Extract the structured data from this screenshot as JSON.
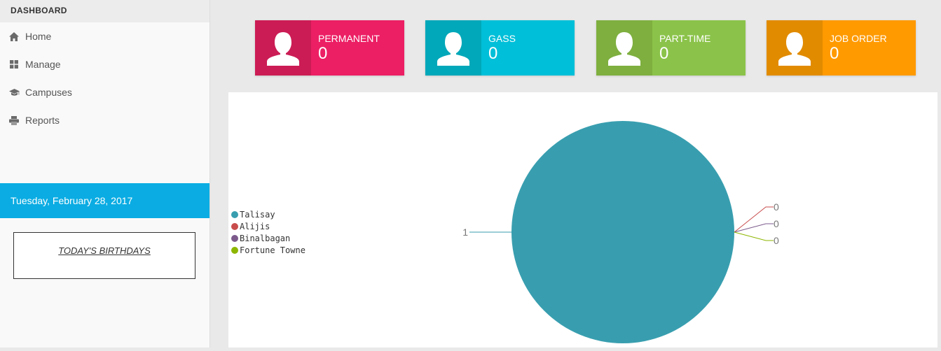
{
  "sidebar": {
    "header": "DASHBOARD",
    "items": [
      {
        "label": "Home",
        "icon": "home-icon"
      },
      {
        "label": "Manage",
        "icon": "grid-icon"
      },
      {
        "label": "Campuses",
        "icon": "graduation-cap-icon"
      },
      {
        "label": "Reports",
        "icon": "printer-icon"
      }
    ],
    "date": "Tuesday, February 28, 2017",
    "birthdays_title": "TODAY'S BIRTHDAYS"
  },
  "cards": [
    {
      "label": "PERMANENT",
      "count": "0",
      "icon": "user-icon",
      "color_dark": "#cb1c55",
      "color": "#ec1f64"
    },
    {
      "label": "GASS",
      "count": "0",
      "icon": "user-icon",
      "color_dark": "#00a8b9",
      "color": "#00bfd8"
    },
    {
      "label": "PART-TIME",
      "count": "0",
      "icon": "user-icon",
      "color_dark": "#7eaf3f",
      "color": "#8bc34a"
    },
    {
      "label": "JOB ORDER",
      "count": "0",
      "icon": "user-icon",
      "color_dark": "#e18b00",
      "color": "#ff9a00"
    }
  ],
  "chart_data": {
    "type": "pie",
    "categories": [
      "Talisay",
      "Alijis",
      "Binalbagan",
      "Fortune Towne"
    ],
    "values": [
      1,
      0,
      0,
      0
    ],
    "colors": [
      "#389eaf",
      "#c94c4c",
      "#7c5a8c",
      "#8db600"
    ],
    "legend": "left"
  }
}
